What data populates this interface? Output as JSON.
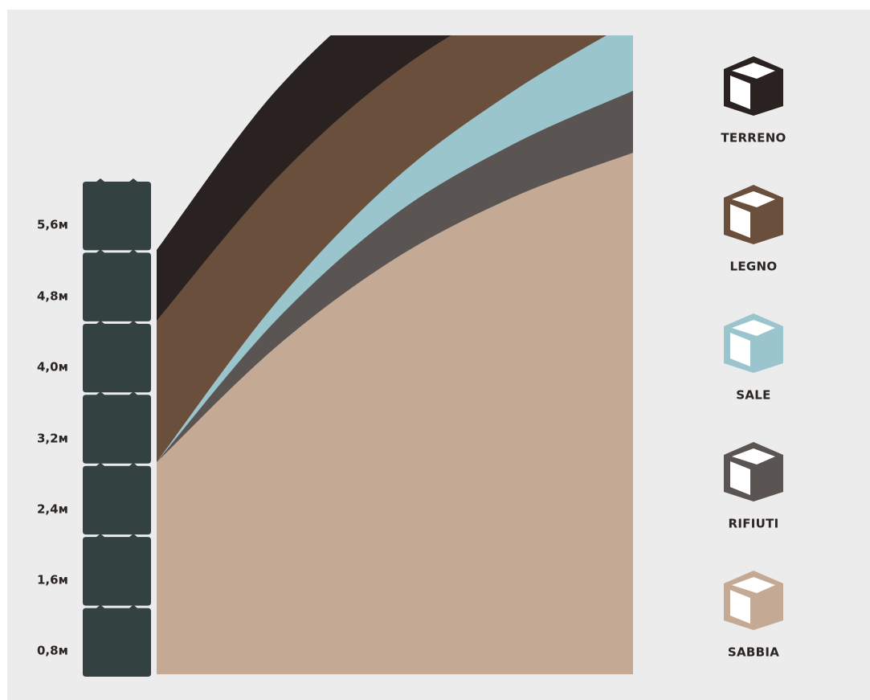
{
  "chart_data": {
    "type": "area",
    "y_axis_unit": "m",
    "y_ticks": [
      "0,8м",
      "1,6м",
      "2,4м",
      "3,2м",
      "4,0м",
      "4,8м",
      "5,6м"
    ],
    "ylim": [
      0,
      7
    ],
    "x": [
      0,
      0.25,
      0.5,
      0.75,
      1
    ],
    "layers_bottom_to_top": [
      {
        "name": "SABBIA",
        "color": "#c4aa94",
        "top": [
          2.4,
          3.7,
          4.7,
          5.4,
          5.9
        ]
      },
      {
        "name": "RIFIUTI",
        "color": "#5a5552",
        "top": [
          2.4,
          4.0,
          5.2,
          6.0,
          6.6
        ]
      },
      {
        "name": "SALE",
        "color": "#9ac5cd",
        "top": [
          2.4,
          4.2,
          5.6,
          6.6,
          7.4
        ]
      },
      {
        "name": "LEGNO",
        "color": "#6a4f3d",
        "top": [
          4.0,
          5.6,
          6.8,
          7.6,
          8.0
        ]
      },
      {
        "name": "TERRENO",
        "color": "#2a2220",
        "top": [
          4.8,
          6.6,
          7.8,
          8.4,
          8.9
        ]
      }
    ],
    "grid": false,
    "legend_position": "right"
  },
  "legend": [
    {
      "label": "TERRENO",
      "color": "#2a2220",
      "icon": "cube-icon"
    },
    {
      "label": "LEGNO",
      "color": "#6a4f3d",
      "icon": "cube-icon"
    },
    {
      "label": "SALE",
      "color": "#9ac5cd",
      "icon": "cube-icon"
    },
    {
      "label": "RIFIUTI",
      "color": "#5a5552",
      "icon": "cube-icon"
    },
    {
      "label": "SABBIA",
      "color": "#c4aa94",
      "icon": "cube-icon"
    }
  ],
  "colors": {
    "background": "#ebeceb",
    "block": "#334241",
    "text": "#2a2522"
  }
}
